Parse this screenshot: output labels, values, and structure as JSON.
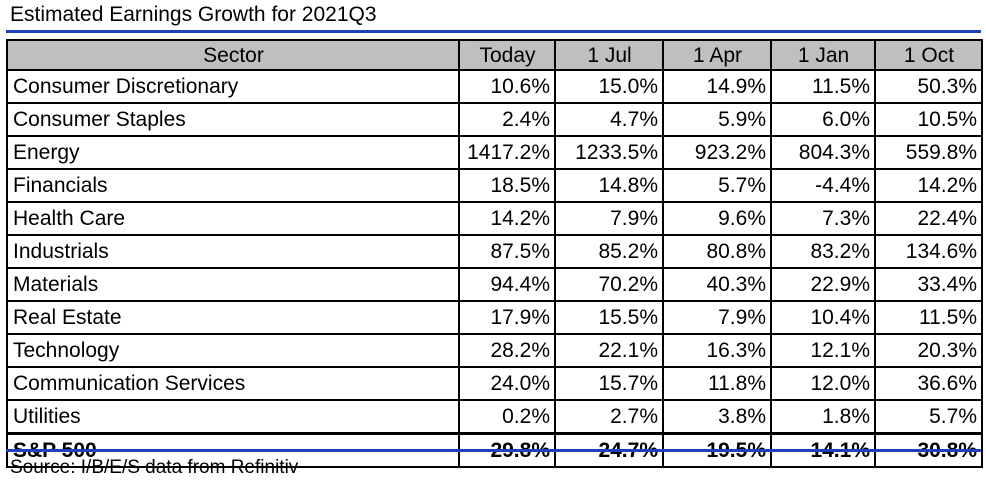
{
  "title": "Estimated Earnings Growth for 2021Q3",
  "table": {
    "headers": [
      "Sector",
      "Today",
      "1 Jul",
      "1 Apr",
      "1 Jan",
      "1 Oct"
    ],
    "rows": [
      {
        "sector": "Consumer Discretionary",
        "values": [
          "10.6%",
          "15.0%",
          "14.9%",
          "11.5%",
          "50.3%"
        ]
      },
      {
        "sector": "Consumer Staples",
        "values": [
          "2.4%",
          "4.7%",
          "5.9%",
          "6.0%",
          "10.5%"
        ]
      },
      {
        "sector": "Energy",
        "values": [
          "1417.2%",
          "1233.5%",
          "923.2%",
          "804.3%",
          "559.8%"
        ]
      },
      {
        "sector": "Financials",
        "values": [
          "18.5%",
          "14.8%",
          "5.7%",
          "-4.4%",
          "14.2%"
        ]
      },
      {
        "sector": "Health Care",
        "values": [
          "14.2%",
          "7.9%",
          "9.6%",
          "7.3%",
          "22.4%"
        ]
      },
      {
        "sector": "Industrials",
        "values": [
          "87.5%",
          "85.2%",
          "80.8%",
          "83.2%",
          "134.6%"
        ]
      },
      {
        "sector": "Materials",
        "values": [
          "94.4%",
          "70.2%",
          "40.3%",
          "22.9%",
          "33.4%"
        ]
      },
      {
        "sector": "Real Estate",
        "values": [
          "17.9%",
          "15.5%",
          "7.9%",
          "10.4%",
          "11.5%"
        ]
      },
      {
        "sector": "Technology",
        "values": [
          "28.2%",
          "22.1%",
          "16.3%",
          "12.1%",
          "20.3%"
        ]
      },
      {
        "sector": "Communication Services",
        "values": [
          "24.0%",
          "15.7%",
          "11.8%",
          "12.0%",
          "36.6%"
        ]
      },
      {
        "sector": "Utilities",
        "values": [
          "0.2%",
          "2.7%",
          "3.8%",
          "1.8%",
          "5.7%"
        ]
      }
    ],
    "total": {
      "sector": "S&P 500",
      "values": [
        "29.8%",
        "24.7%",
        "19.5%",
        "14.1%",
        "30.8%"
      ]
    }
  },
  "source": "Source: I/B/E/S data from Refinitiv",
  "colors": {
    "rule": "#1f3fbf",
    "header_bg": "#bfbfbf",
    "border": "#000000"
  }
}
